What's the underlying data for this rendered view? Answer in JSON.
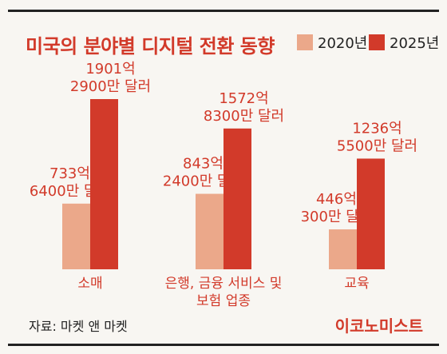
{
  "header": {
    "title": "미국의 분야별 디지털 전환 동향"
  },
  "legend": [
    {
      "label": "2020년",
      "color": "#eba88a"
    },
    {
      "label": "2025년",
      "color": "#d23a2a"
    }
  ],
  "footer": {
    "source": "자료: 마켓 앤 마켓",
    "brand": "이코노미스트"
  },
  "chart_data": {
    "type": "bar",
    "title": "미국의 분야별 디지털 전환 동향",
    "categories": [
      [
        "소매"
      ],
      [
        "은행, 금융 서비스 및",
        "보험 업종"
      ],
      [
        "교육"
      ]
    ],
    "series": [
      {
        "name": "2020년",
        "color": "#eba88a",
        "values": [
          733.64,
          843.24,
          446.03
        ],
        "labels": [
          [
            "733억",
            "6400만 달러"
          ],
          [
            "843억",
            "2400만 달러"
          ],
          [
            "446억",
            "300만 달러"
          ]
        ]
      },
      {
        "name": "2025년",
        "color": "#d23a2a",
        "values": [
          1901.29,
          1572.83,
          1236.55
        ],
        "labels": [
          [
            "1901억",
            "2900만 달러"
          ],
          [
            "1572억",
            "8300만 달러"
          ],
          [
            "1236억",
            "5500만 달러"
          ]
        ]
      }
    ],
    "ylim": [
      0,
      1901.29
    ],
    "legend_position": "top-right",
    "grid": false
  }
}
